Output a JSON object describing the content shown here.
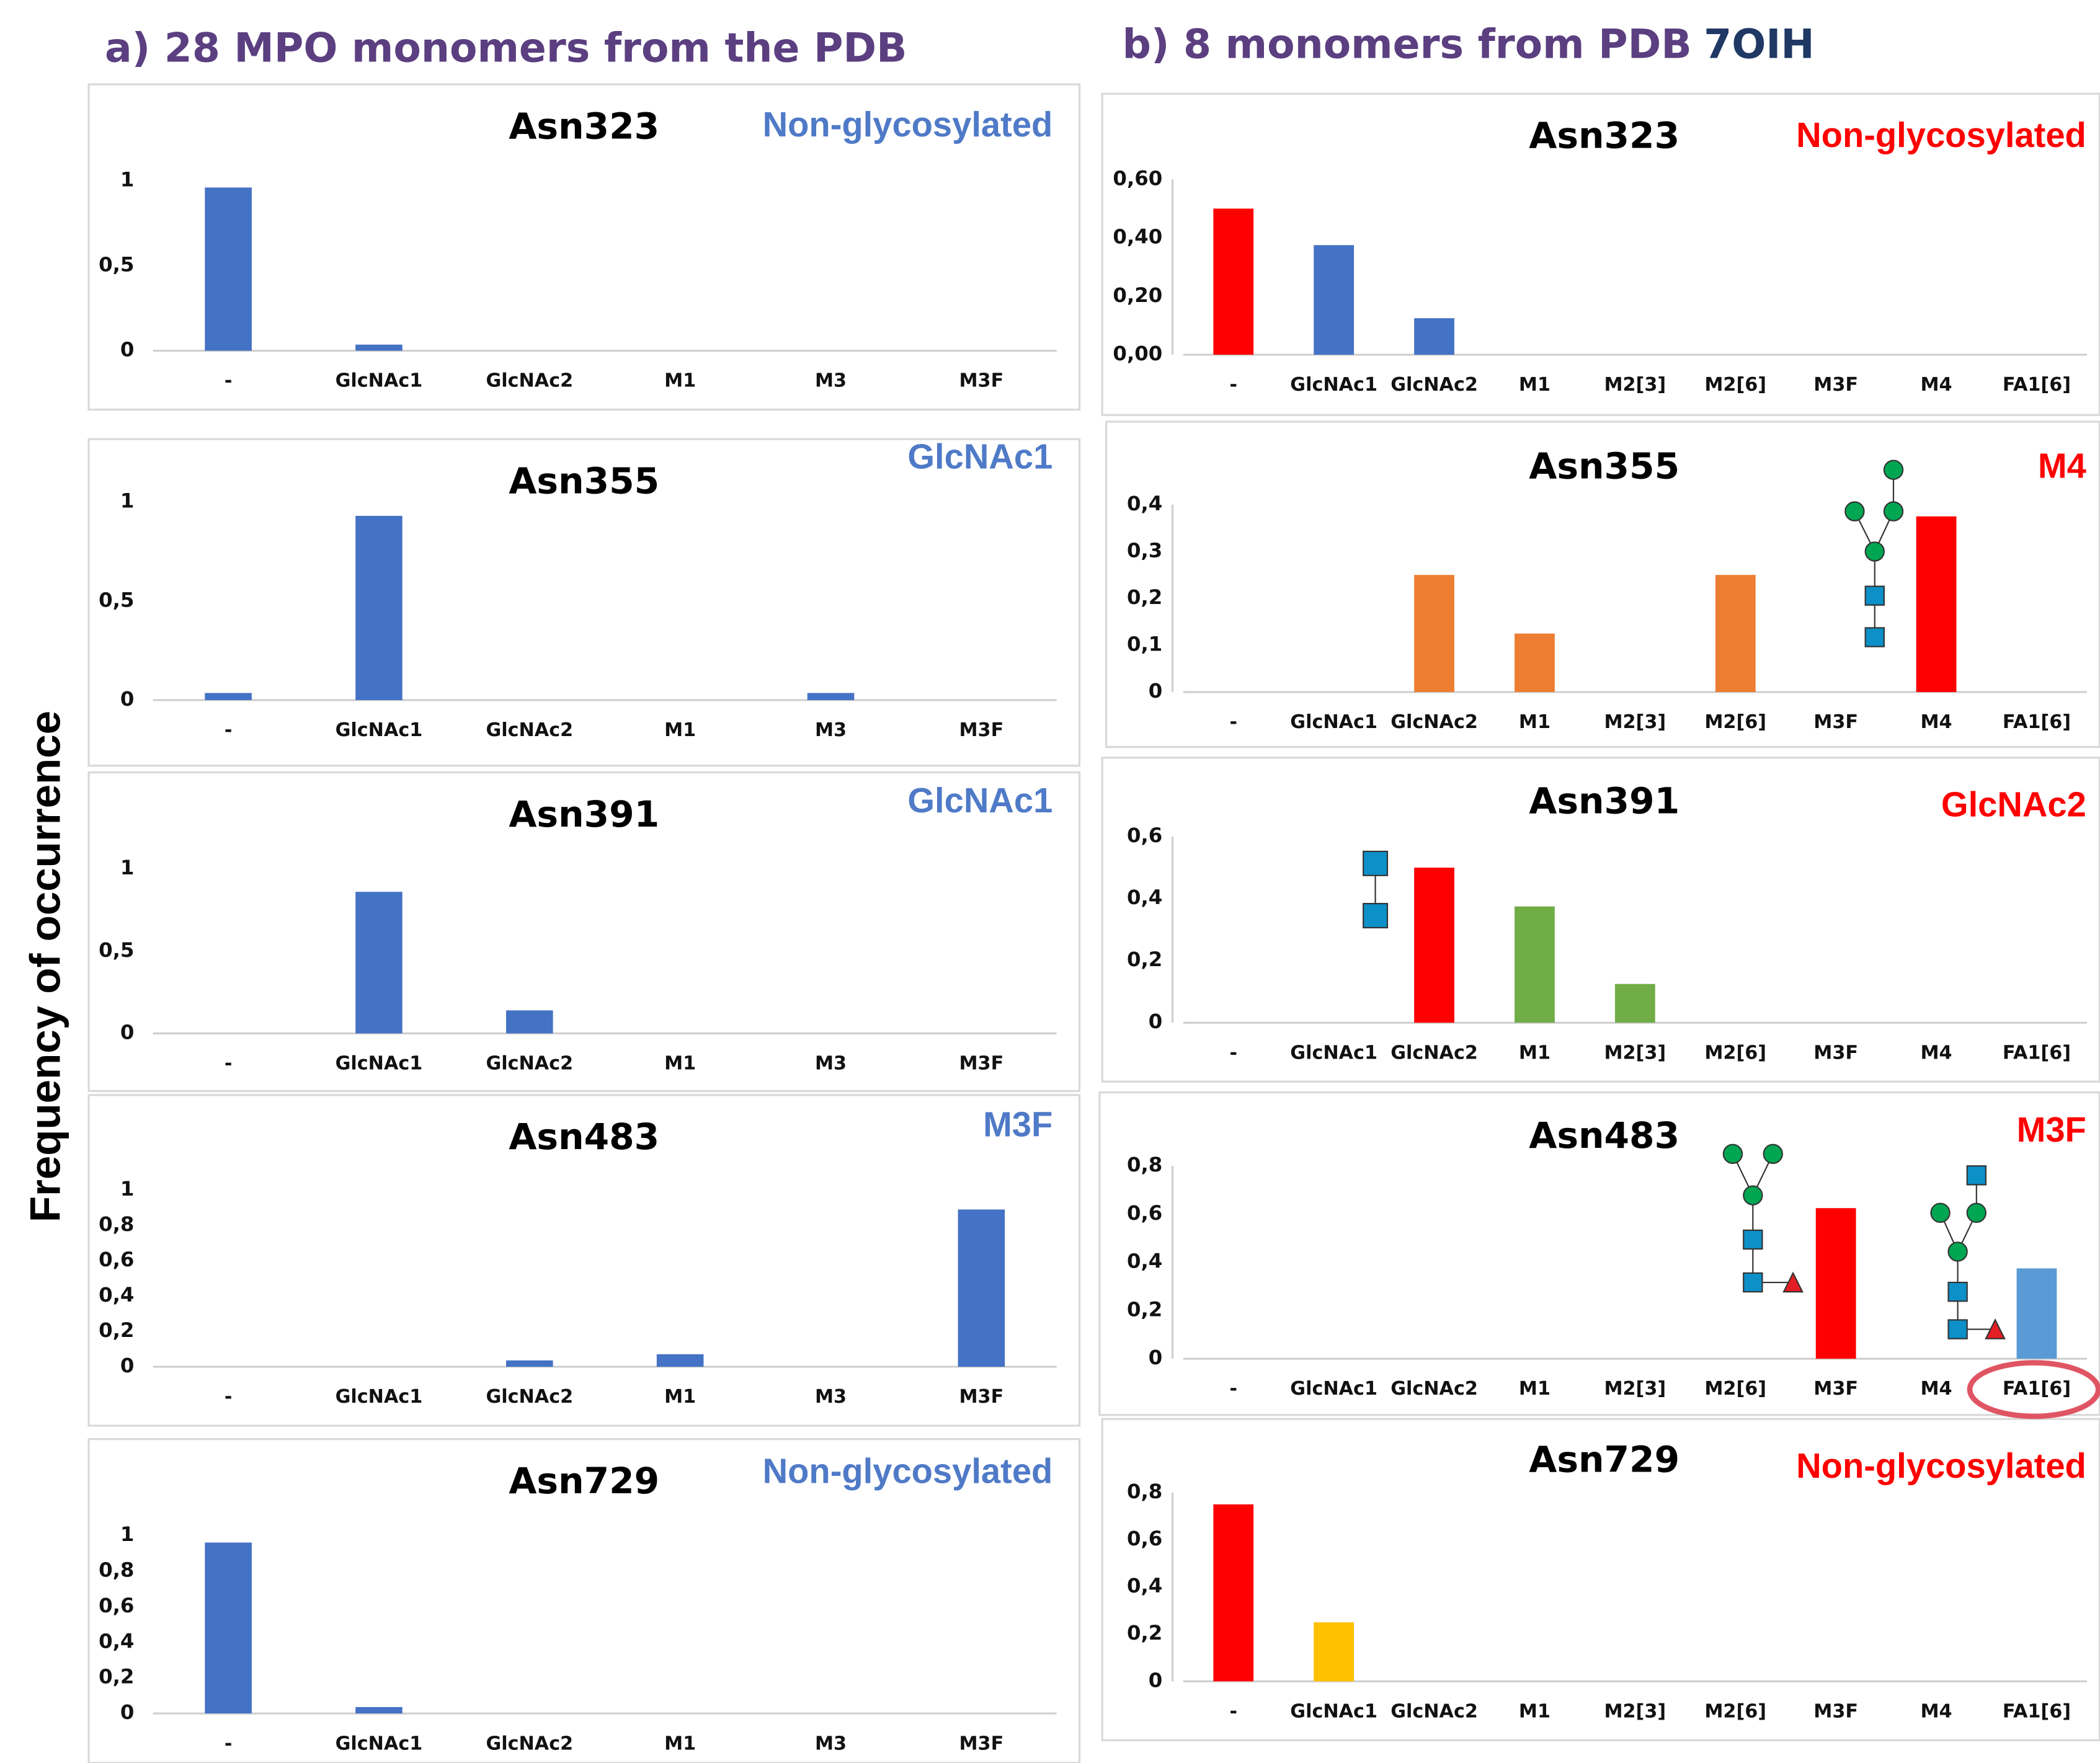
{
  "header": {
    "panel_a": "a) 28 MPO monomers from the PDB",
    "panel_b": "b) 8 monomers from PDB",
    "panel_b_id": "7OIH",
    "y_label": "Frequency of occurrence"
  },
  "chart_data": [
    {
      "type": "bar",
      "title": "Asn323",
      "annotation": "Non-glycosylated",
      "annotation_color": "#4f7ac7",
      "color": "#4472c4",
      "categories": [
        "-",
        "GlcNAc1",
        "GlcNAc2",
        "M1",
        "M3",
        "M3F"
      ],
      "values": [
        0.96,
        0.036,
        0,
        0,
        0,
        0
      ],
      "ylim": [
        0,
        1
      ],
      "yticks": [
        0,
        {
          "value": 0.5,
          "label": "0,5"
        },
        1
      ]
    },
    {
      "type": "bar",
      "title": "Asn355",
      "annotation": "GlcNAc1",
      "annotation_color": "#4f7ac7",
      "color": "#4472c4",
      "categories": [
        "-",
        "GlcNAc1",
        "GlcNAc2",
        "M1",
        "M3",
        "M3F"
      ],
      "values": [
        0.036,
        0.93,
        0,
        0,
        0.036,
        0
      ],
      "ylim": [
        0,
        1
      ],
      "yticks": [
        0,
        {
          "value": 0.5,
          "label": "0,5"
        },
        1
      ]
    },
    {
      "type": "bar",
      "title": "Asn391",
      "annotation": "GlcNAc1",
      "annotation_color": "#4f7ac7",
      "color": "#4472c4",
      "categories": [
        "-",
        "GlcNAc1",
        "GlcNAc2",
        "M1",
        "M3",
        "M3F"
      ],
      "values": [
        0,
        0.86,
        0.14,
        0,
        0,
        0
      ],
      "ylim": [
        0,
        1
      ],
      "yticks": [
        0,
        {
          "value": 0.5,
          "label": "0,5"
        },
        1
      ]
    },
    {
      "type": "bar",
      "title": "Asn483",
      "annotation": "M3F",
      "annotation_color": "#4f7ac7",
      "color": "#4472c4",
      "categories": [
        "-",
        "GlcNAc1",
        "GlcNAc2",
        "M1",
        "M3",
        "M3F"
      ],
      "values": [
        0,
        0,
        0.036,
        0.071,
        0,
        0.89
      ],
      "ylim": [
        0,
        1
      ],
      "yticks": [
        0,
        {
          "value": 0.2,
          "label": "0,2"
        },
        {
          "value": 0.4,
          "label": "0,4"
        },
        {
          "value": 0.6,
          "label": "0,6"
        },
        {
          "value": 0.8,
          "label": "0,8"
        },
        1
      ]
    },
    {
      "type": "bar",
      "title": "Asn729",
      "annotation": "Non-glycosylated",
      "annotation_color": "#4f7ac7",
      "color": "#4472c4",
      "categories": [
        "-",
        "GlcNAc1",
        "GlcNAc2",
        "M1",
        "M3",
        "M3F"
      ],
      "values": [
        0.96,
        0.036,
        0,
        0,
        0,
        0
      ],
      "ylim": [
        0,
        1
      ],
      "yticks": [
        0,
        {
          "value": 0.2,
          "label": "0,2"
        },
        {
          "value": 0.4,
          "label": "0,4"
        },
        {
          "value": 0.6,
          "label": "0,6"
        },
        {
          "value": 0.8,
          "label": "0,8"
        },
        1
      ]
    },
    {
      "type": "bar",
      "title": "Asn323",
      "annotation": "Non-glycosylated",
      "annotation_color": "#ff0000",
      "categories": [
        "-",
        "GlcNAc1",
        "GlcNAc2",
        "M1",
        "M2[3]",
        "M2[6]",
        "M3F",
        "M4",
        "FA1[6]"
      ],
      "values": [
        0.5,
        0.375,
        0.125,
        0,
        0,
        0,
        0,
        0,
        0
      ],
      "colors": [
        "#ff0000",
        "#4472c4",
        "#4472c4",
        "#4472c4",
        "#4472c4",
        "#4472c4",
        "#4472c4",
        "#4472c4",
        "#4472c4"
      ],
      "ylim": [
        0,
        0.6
      ],
      "yticks": [
        {
          "value": 0,
          "label": "0,00"
        },
        {
          "value": 0.2,
          "label": "0,20"
        },
        {
          "value": 0.4,
          "label": "0,40"
        },
        {
          "value": 0.6,
          "label": "0,60"
        }
      ]
    },
    {
      "type": "bar",
      "title": "Asn355",
      "annotation": "M4",
      "annotation_color": "#ff0000",
      "categories": [
        "-",
        "GlcNAc1",
        "GlcNAc2",
        "M1",
        "M2[3]",
        "M2[6]",
        "M3F",
        "M4",
        "FA1[6]"
      ],
      "values": [
        0,
        0,
        0.25,
        0.125,
        0,
        0.25,
        0,
        0.375,
        0
      ],
      "colors": [
        "#ed7d31",
        "#ed7d31",
        "#ed7d31",
        "#ed7d31",
        "#ed7d31",
        "#ed7d31",
        "#ed7d31",
        "#ff0000",
        "#ed7d31"
      ],
      "ylim": [
        0,
        0.4
      ],
      "yticks": [
        0,
        {
          "value": 0.1,
          "label": "0,1"
        },
        {
          "value": 0.2,
          "label": "0,2"
        },
        {
          "value": 0.3,
          "label": "0,3"
        },
        {
          "value": 0.4,
          "label": "0,4"
        }
      ]
    },
    {
      "type": "bar",
      "title": "Asn391",
      "annotation": "GlcNAc2",
      "annotation_color": "#ff0000",
      "categories": [
        "-",
        "GlcNAc1",
        "GlcNAc2",
        "M1",
        "M2[3]",
        "M2[6]",
        "M3F",
        "M4",
        "FA1[6]"
      ],
      "values": [
        0,
        0,
        0.5,
        0.375,
        0.125,
        0,
        0,
        0,
        0
      ],
      "colors": [
        "#70ad47",
        "#70ad47",
        "#ff0000",
        "#70ad47",
        "#70ad47",
        "#70ad47",
        "#70ad47",
        "#70ad47",
        "#70ad47"
      ],
      "ylim": [
        0,
        0.6
      ],
      "yticks": [
        0,
        {
          "value": 0.2,
          "label": "0,2"
        },
        {
          "value": 0.4,
          "label": "0,4"
        },
        {
          "value": 0.6,
          "label": "0,6"
        }
      ]
    },
    {
      "type": "bar",
      "title": "Asn483",
      "annotation": "M3F",
      "annotation_color": "#ff0000",
      "categories": [
        "-",
        "GlcNAc1",
        "GlcNAc2",
        "M1",
        "M2[3]",
        "M2[6]",
        "M3F",
        "M4",
        "FA1[6]"
      ],
      "values": [
        0,
        0,
        0,
        0,
        0,
        0,
        0.625,
        0,
        0.375
      ],
      "colors": [
        "#5b9bd5",
        "#5b9bd5",
        "#5b9bd5",
        "#5b9bd5",
        "#5b9bd5",
        "#5b9bd5",
        "#ff0000",
        "#5b9bd5",
        "#5b9bd5"
      ],
      "ylim": [
        0,
        0.8
      ],
      "yticks": [
        0,
        {
          "value": 0.2,
          "label": "0,2"
        },
        {
          "value": 0.4,
          "label": "0,4"
        },
        {
          "value": 0.6,
          "label": "0,6"
        },
        {
          "value": 0.8,
          "label": "0,8"
        }
      ]
    },
    {
      "type": "bar",
      "title": "Asn729",
      "annotation": "Non-glycosylated",
      "annotation_color": "#ff0000",
      "categories": [
        "-",
        "GlcNAc1",
        "GlcNAc2",
        "M1",
        "M2[3]",
        "M2[6]",
        "M3F",
        "M4",
        "FA1[6]"
      ],
      "values": [
        0.75,
        0.25,
        0,
        0,
        0,
        0,
        0,
        0,
        0
      ],
      "colors": [
        "#ff0000",
        "#ffc000",
        "#ffc000",
        "#ffc000",
        "#ffc000",
        "#ffc000",
        "#ffc000",
        "#ffc000",
        "#ffc000"
      ],
      "ylim": [
        0,
        0.8
      ],
      "yticks": [
        0,
        {
          "value": 0.2,
          "label": "0,2"
        },
        {
          "value": 0.4,
          "label": "0,4"
        },
        {
          "value": 0.6,
          "label": "0,6"
        },
        {
          "value": 0.8,
          "label": "0,8"
        }
      ]
    }
  ]
}
